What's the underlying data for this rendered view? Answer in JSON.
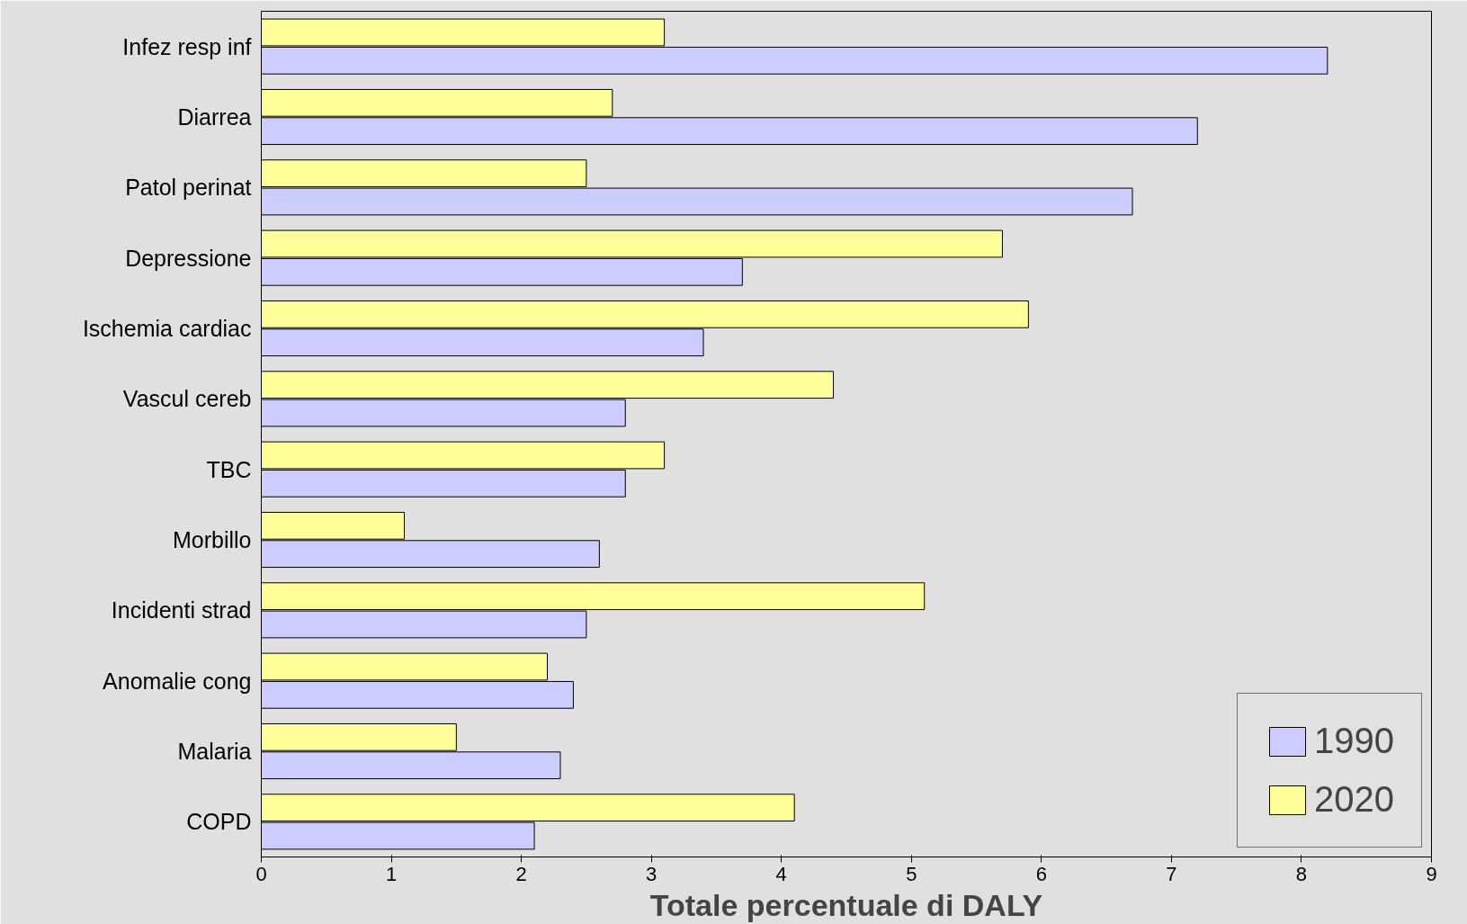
{
  "chart_data": {
    "type": "bar",
    "orientation": "horizontal",
    "xlabel": "Totale percentuale di DALY",
    "categories": [
      "Infez resp inf",
      "Diarrea",
      "Patol perinat",
      "Depressione",
      "Ischemia cardiac",
      "Vascul cereb",
      "TBC",
      "Morbillo",
      "Incidenti strad",
      "Anomalie cong",
      "Malaria",
      "COPD"
    ],
    "series": [
      {
        "name": "1990",
        "color": "#ccccff",
        "values": [
          8.2,
          7.2,
          6.7,
          3.7,
          3.4,
          2.8,
          2.8,
          2.6,
          2.5,
          2.4,
          2.3,
          2.1
        ]
      },
      {
        "name": "2020",
        "color": "#ffff99",
        "values": [
          3.1,
          2.7,
          2.5,
          5.7,
          5.9,
          4.4,
          3.1,
          1.1,
          5.1,
          2.2,
          1.5,
          4.1
        ]
      }
    ],
    "xlim": [
      0,
      9
    ],
    "xticks": [
      0,
      1,
      2,
      3,
      4,
      5,
      6,
      7,
      8,
      9
    ],
    "grid": false,
    "legend": "bottom right"
  }
}
